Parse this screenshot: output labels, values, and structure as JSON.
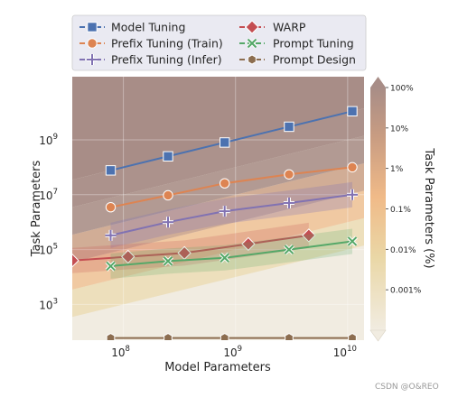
{
  "chart_data": {
    "type": "line",
    "xlabel": "Model Parameters",
    "ylabel": "Task Parameters",
    "xscale": "log",
    "yscale": "log",
    "xlim": [
      35000000,
      14000000000
    ],
    "ylim": [
      50,
      200000000000
    ],
    "x_ticks": [
      {
        "value": 100000000,
        "base": "10",
        "exp": "8"
      },
      {
        "value": 1000000000,
        "base": "10",
        "exp": "9"
      },
      {
        "value": 10000000000,
        "base": "10",
        "exp": "10"
      }
    ],
    "y_ticks": [
      {
        "value": 1000,
        "base": "10",
        "exp": "3"
      },
      {
        "value": 100000,
        "base": "10",
        "exp": "5"
      },
      {
        "value": 10000000,
        "base": "10",
        "exp": "7"
      },
      {
        "value": 1000000000,
        "base": "10",
        "exp": "9"
      }
    ],
    "grid": true,
    "legend_position": "top",
    "series": [
      {
        "name": "Model Tuning",
        "color": "#4c72b0",
        "marker": "square",
        "x": [
          77000000,
          250000000,
          800000000,
          3000000000,
          11000000000
        ],
        "y": [
          77000000,
          250000000,
          800000000,
          3000000000,
          11000000000
        ]
      },
      {
        "name": "Prefix Tuning (Train)",
        "color": "#dd8452",
        "marker": "circle",
        "x": [
          77000000,
          250000000,
          800000000,
          3000000000,
          11000000000
        ],
        "y": [
          3500000,
          9500000,
          26000000,
          55000000,
          100000000
        ]
      },
      {
        "name": "Prefix Tuning (Infer)",
        "color": "#8172b2",
        "marker": "plus",
        "x": [
          77000000,
          250000000,
          800000000,
          3000000000,
          11000000000
        ],
        "y": [
          330000,
          1000000,
          2500000,
          5000000,
          10000000
        ]
      },
      {
        "name": "WARP",
        "color": "#c44e52",
        "marker": "diamond",
        "x": [
          35000000,
          110000000,
          350000000,
          1300000000,
          4500000000
        ],
        "y": [
          40000,
          55000,
          75000,
          160000,
          330000
        ]
      },
      {
        "name": "Prompt Tuning",
        "color": "#55a868",
        "marker": "x",
        "x": [
          77000000,
          250000000,
          800000000,
          3000000000,
          11000000000
        ],
        "y": [
          25000,
          38000,
          50000,
          100000,
          200000
        ]
      },
      {
        "name": "Prompt Design",
        "color": "#8c6d4f",
        "marker": "hexagon",
        "x": [
          77000000,
          250000000,
          800000000,
          3000000000,
          11000000000
        ],
        "y": [
          60,
          60,
          60,
          60,
          60
        ]
      }
    ],
    "colorbar": {
      "label": "Task Parameters (%)",
      "ticks": [
        {
          "label": "100%",
          "fraction": 1
        },
        {
          "label": "10%",
          "fraction": 0.1
        },
        {
          "label": "1%",
          "fraction": 0.01
        },
        {
          "label": "0.1%",
          "fraction": 0.001
        },
        {
          "label": "0.01%",
          "fraction": 0.0001
        },
        {
          "label": "0.001%",
          "fraction": 1e-05
        }
      ],
      "colors": [
        "#f1ece1",
        "#ead7a6",
        "#f0ba88",
        "#c89c82",
        "#a88d87"
      ]
    }
  },
  "watermark": "CSDN @O&REO"
}
